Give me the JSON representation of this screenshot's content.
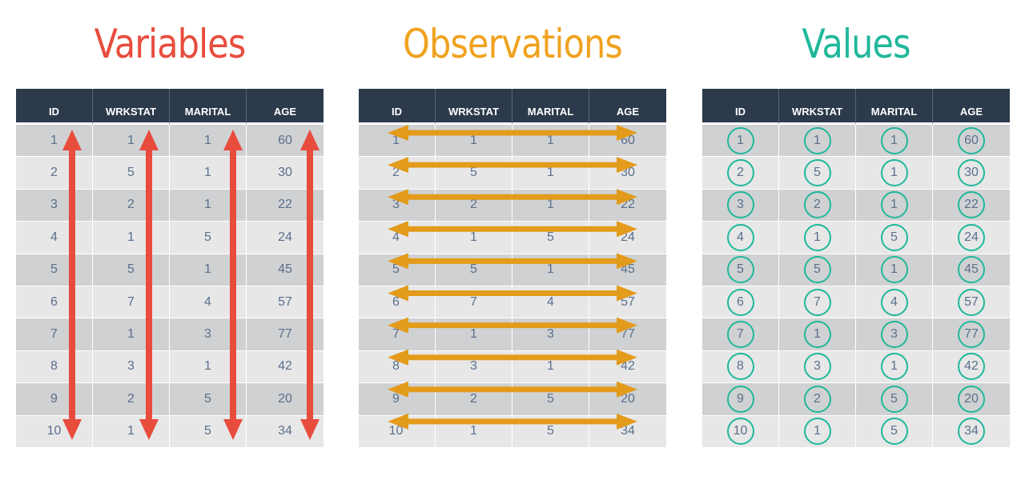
{
  "panels": [
    {
      "key": "variables",
      "title": "Variables",
      "color": "#e84c3d"
    },
    {
      "key": "observations",
      "title": "Observations",
      "color": "#f0a21e"
    },
    {
      "key": "values",
      "title": "Values",
      "color": "#1fb89a"
    }
  ],
  "table": {
    "columns": [
      "ID",
      "WRKSTAT",
      "MARITAL",
      "AGE"
    ],
    "rows": [
      [
        "1",
        "1",
        "1",
        "60"
      ],
      [
        "2",
        "5",
        "1",
        "30"
      ],
      [
        "3",
        "2",
        "1",
        "22"
      ],
      [
        "4",
        "1",
        "5",
        "24"
      ],
      [
        "5",
        "5",
        "1",
        "45"
      ],
      [
        "6",
        "7",
        "4",
        "57"
      ],
      [
        "7",
        "1",
        "3",
        "77"
      ],
      [
        "8",
        "3",
        "1",
        "42"
      ],
      [
        "9",
        "2",
        "5",
        "20"
      ],
      [
        "10",
        "1",
        "5",
        "34"
      ]
    ]
  },
  "colors": {
    "header_bg": "#2c3a4c",
    "row_odd": "#d0d1d3",
    "row_even": "#e7e7e8",
    "cell_text": "#5a6f8c",
    "variables_arrow": "#e84c3d",
    "observations_arrow": "#e39b1b",
    "values_circle": "#1fb89a"
  }
}
